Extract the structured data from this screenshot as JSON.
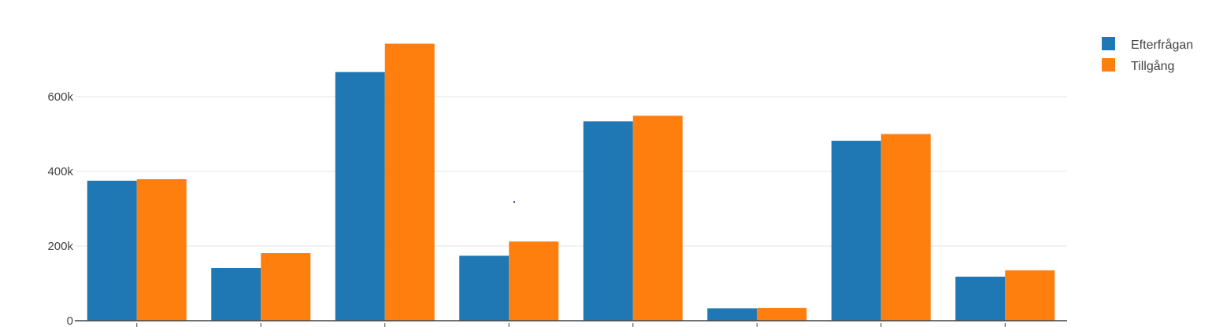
{
  "chart_data": {
    "type": "bar",
    "categories": [
      "",
      "",
      "",
      "",
      "",
      "",
      "",
      ""
    ],
    "series": [
      {
        "name": "Efterfrågan",
        "color": "#1f77b4",
        "values": [
          375000,
          141000,
          666000,
          174000,
          534000,
          33000,
          482000,
          118000
        ]
      },
      {
        "name": "Tillgång",
        "color": "#ff7f0e",
        "values": [
          379000,
          181000,
          742000,
          212000,
          549000,
          34000,
          500000,
          135000
        ]
      }
    ],
    "yticks": [
      0,
      200000,
      400000,
      600000
    ],
    "ytick_labels": [
      "0",
      "200k",
      "400k",
      "600k"
    ],
    "ylim": [
      0,
      800000
    ],
    "grid": true,
    "legend": "top-right",
    "title": "",
    "xlabel": "",
    "ylabel": ""
  }
}
